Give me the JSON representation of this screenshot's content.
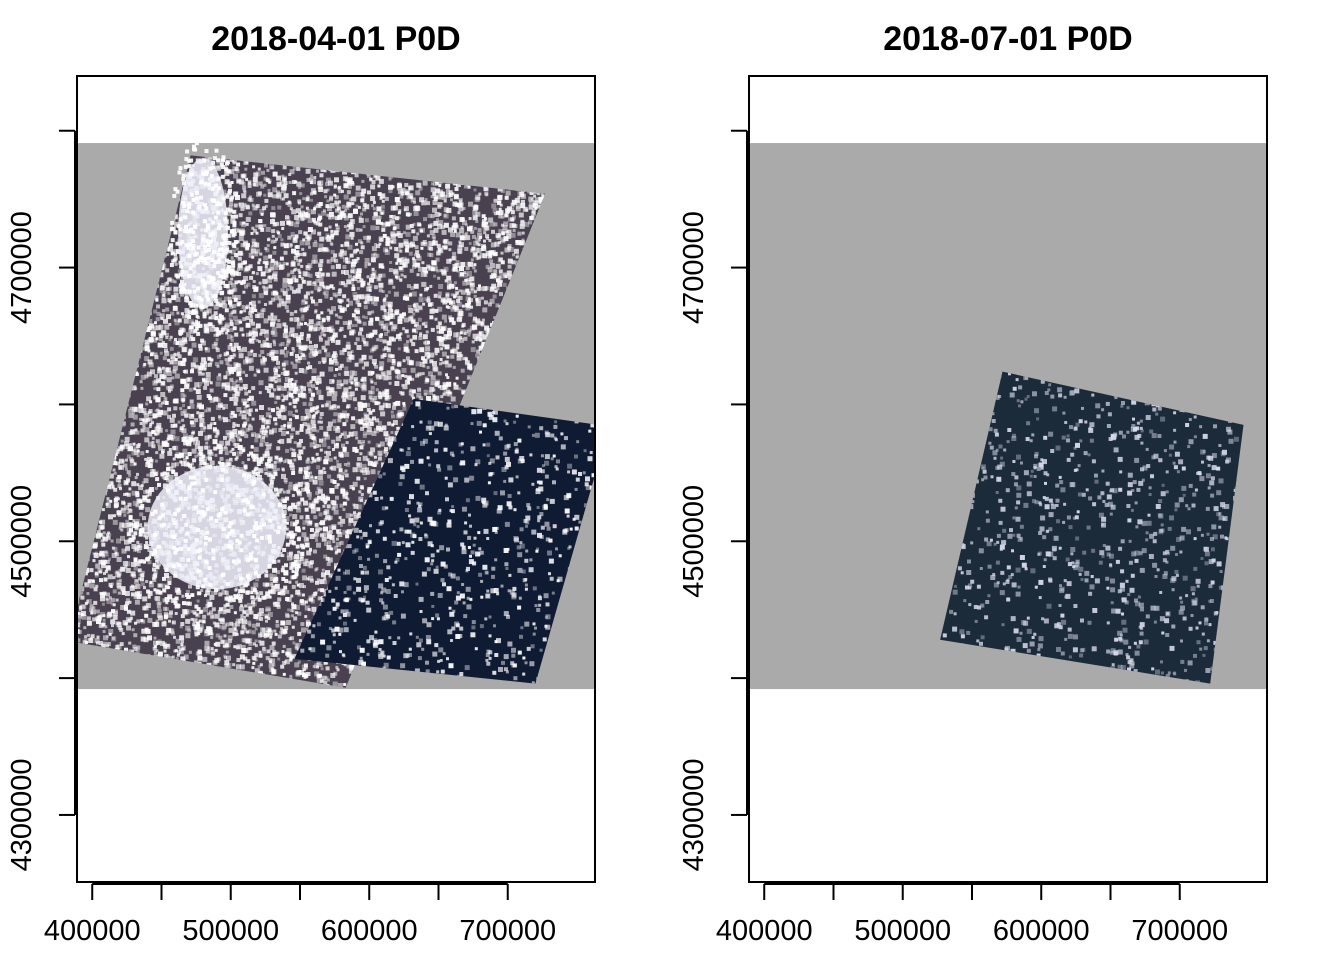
{
  "chart_data": [
    {
      "type": "heatmap",
      "title": "2018-04-01 P0D",
      "x_ticks": [
        400000,
        500000,
        600000,
        700000
      ],
      "y_ticks": [
        4300000,
        4400000,
        4500000,
        4600000,
        4700000,
        4800000
      ],
      "x_tick_labels": [
        "400000",
        "500000",
        "600000",
        "700000"
      ],
      "y_tick_labels": [
        "4300000",
        "",
        "4500000",
        "",
        "4700000",
        ""
      ],
      "xlim": [
        389000,
        763000
      ],
      "ylim": [
        4251000,
        4840000
      ],
      "extent_bbox": {
        "xmin": 389000,
        "xmax": 763000,
        "ymin": 4392000,
        "ymax": 4791000
      },
      "extent_fill": "#aaaaaa",
      "scenes": [
        {
          "color": "#4a4150",
          "speckle": "#ffffff",
          "corners": [
            [
              471000,
              4782000
            ],
            [
              727000,
              4754000
            ],
            [
              583000,
              4393000
            ],
            [
              383000,
              4427000
            ]
          ]
        },
        {
          "color": "#0f1a33",
          "speckle": "#ffffff",
          "corners": [
            [
              632000,
              4604000
            ],
            [
              773000,
              4584000
            ],
            [
              720000,
              4396000
            ],
            [
              546000,
              4414000
            ]
          ]
        }
      ],
      "bright_zones": [
        {
          "cx": 480000,
          "cy": 4725000,
          "rx": 18000,
          "ry": 55000
        },
        {
          "cx": 490000,
          "cy": 4510000,
          "rx": 50000,
          "ry": 45000
        }
      ]
    },
    {
      "type": "heatmap",
      "title": "2018-07-01 P0D",
      "x_ticks": [
        400000,
        500000,
        600000,
        700000
      ],
      "y_ticks": [
        4300000,
        4400000,
        4500000,
        4600000,
        4700000,
        4800000
      ],
      "x_tick_labels": [
        "400000",
        "500000",
        "600000",
        "700000"
      ],
      "y_tick_labels": [
        "4300000",
        "",
        "4500000",
        "",
        "4700000",
        ""
      ],
      "xlim": [
        389000,
        763000
      ],
      "ylim": [
        4251000,
        4840000
      ],
      "extent_bbox": {
        "xmin": 389000,
        "xmax": 763000,
        "ymin": 4392000,
        "ymax": 4791000
      },
      "extent_fill": "#aaaaaa",
      "scenes": [
        {
          "color": "#1c2b3a",
          "speckle": "#d9dcec",
          "corners": [
            [
              572000,
              4624000
            ],
            [
              746000,
              4585000
            ],
            [
              722000,
              4396000
            ],
            [
              527000,
              4428000
            ]
          ]
        }
      ],
      "bright_zones": []
    }
  ]
}
